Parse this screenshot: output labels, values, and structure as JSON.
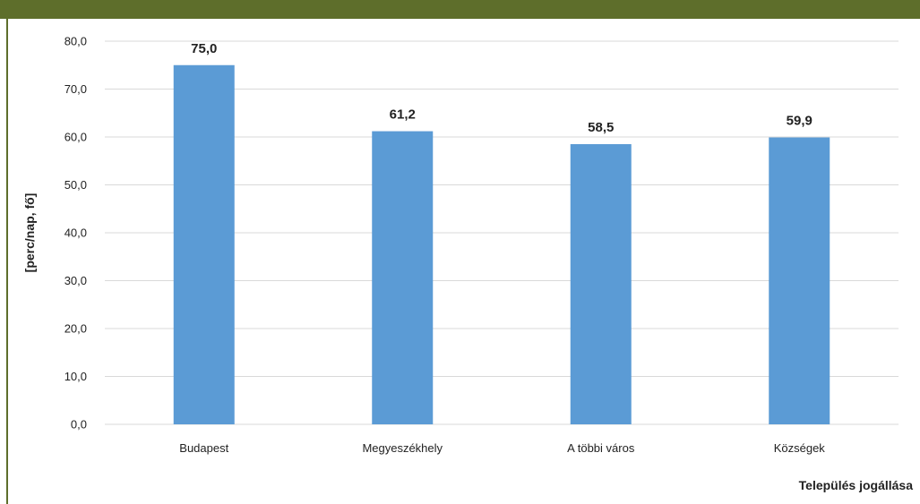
{
  "chart_data": {
    "type": "bar",
    "categories": [
      "Budapest",
      "Megyeszékhely",
      "A többi város",
      "Községek"
    ],
    "values": [
      75.0,
      61.2,
      58.5,
      59.9
    ],
    "value_labels": [
      "75,0",
      "61,2",
      "58,5",
      "59,9"
    ],
    "title": "",
    "xlabel": "Település jogállása",
    "ylabel": "[perc/nap, fő]",
    "ylim": [
      0,
      80
    ],
    "yticks": [
      0,
      10,
      20,
      30,
      40,
      50,
      60,
      70,
      80
    ],
    "ytick_labels": [
      "0,0",
      "10,0",
      "20,0",
      "30,0",
      "40,0",
      "50,0",
      "60,0",
      "70,0",
      "80,0"
    ],
    "grid": true,
    "bar_color": "#5b9bd5",
    "grid_color": "#d9d9d9",
    "frame_color": "#5e6e2b"
  }
}
